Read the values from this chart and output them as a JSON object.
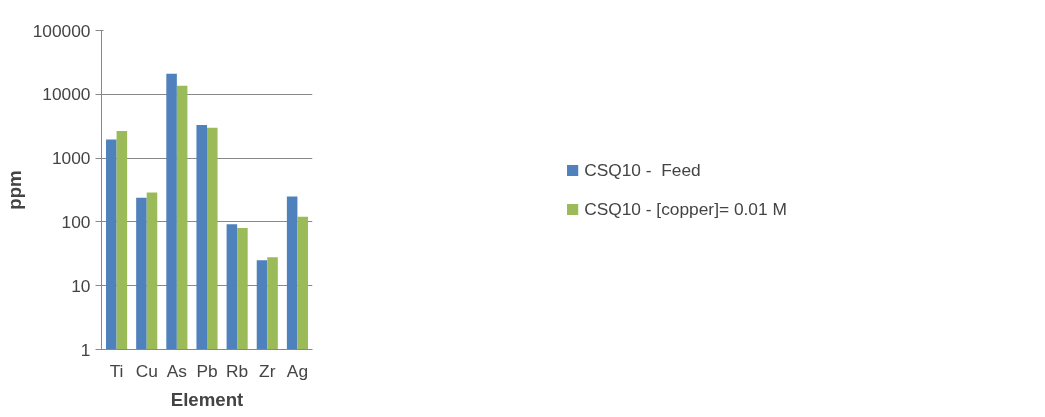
{
  "chart_data": {
    "type": "bar",
    "xlabel": "Element",
    "ylabel": "ppm",
    "categories": [
      "Ti",
      "Cu",
      "As",
      "Pb",
      "Rb",
      "Zr",
      "Ag"
    ],
    "series": [
      {
        "name": "CSQ10 -  Feed",
        "color": "#4f81bd",
        "values": [
          1950,
          240,
          21000,
          3300,
          92,
          25,
          250
        ]
      },
      {
        "name": "CSQ10 - [copper]= 0.01 M",
        "color": "#9bbb59",
        "values": [
          2650,
          290,
          13600,
          3000,
          80,
          28,
          120
        ]
      }
    ],
    "log": "y",
    "ylim": [
      1,
      100000
    ],
    "yticks": [
      1,
      10,
      100,
      1000,
      10000,
      100000
    ],
    "grid": "y",
    "legend": "right"
  }
}
